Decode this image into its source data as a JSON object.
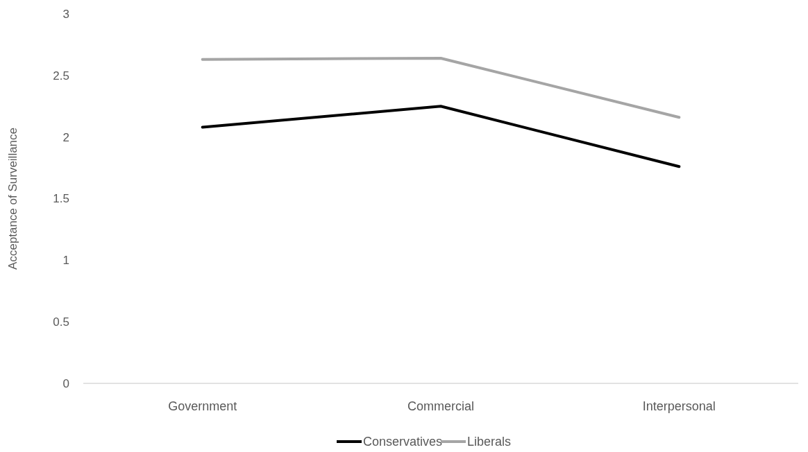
{
  "chart_data": {
    "type": "line",
    "ylabel": "Acceptance of Surveillance",
    "categories": [
      "Government",
      "Commercial",
      "Interpersonal"
    ],
    "series": [
      {
        "name": "Conservatives",
        "color": "#000000",
        "values": [
          2.08,
          2.25,
          1.76
        ]
      },
      {
        "name": "Liberals",
        "color": "#a5a5a5",
        "values": [
          2.63,
          2.64,
          2.16
        ]
      }
    ],
    "ylim": [
      0,
      3
    ],
    "yticks": [
      0,
      0.5,
      1,
      1.5,
      2,
      2.5,
      3
    ],
    "legend": "bottom",
    "marker": "none",
    "line_style": "solid"
  }
}
